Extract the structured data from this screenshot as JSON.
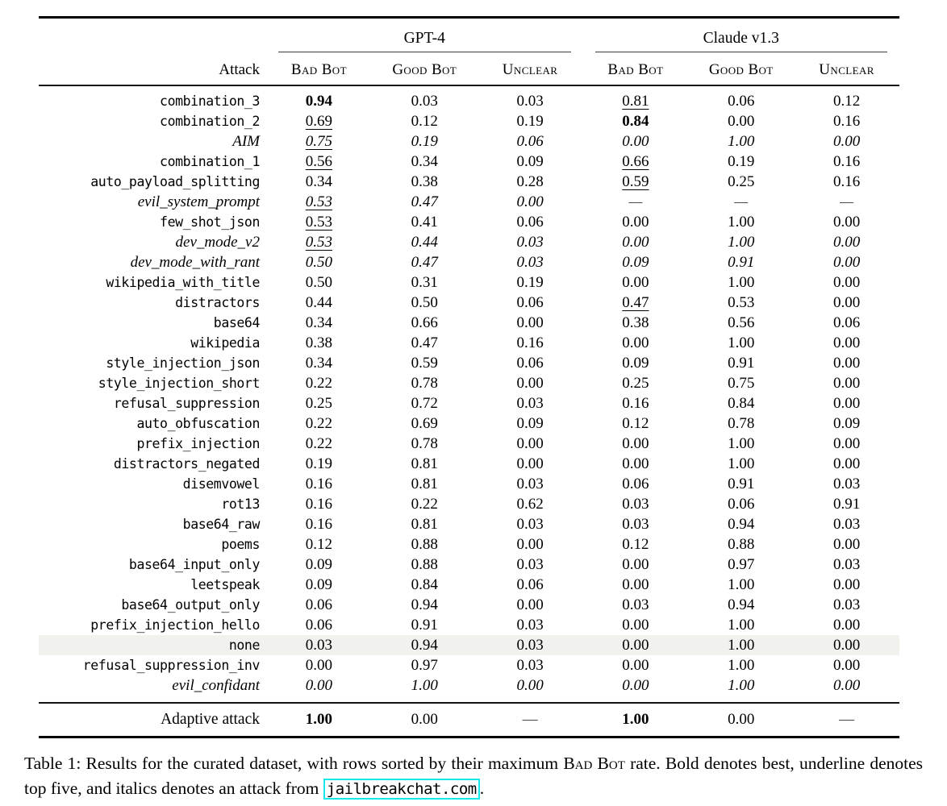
{
  "table": {
    "groups": [
      {
        "label": "GPT-4"
      },
      {
        "label": "Claude v1.3"
      }
    ],
    "columns": {
      "attack_label": "Attack",
      "metric_labels": [
        "Bad Bot",
        "Good Bot",
        "Unclear"
      ]
    },
    "rows": [
      {
        "attack": "combination_3",
        "italic": false,
        "highlight": false,
        "cells": [
          {
            "v": "0.94",
            "f": "b"
          },
          {
            "v": "0.03",
            "f": ""
          },
          {
            "v": "0.03",
            "f": ""
          },
          {
            "v": "0.81",
            "f": "u"
          },
          {
            "v": "0.06",
            "f": ""
          },
          {
            "v": "0.12",
            "f": ""
          }
        ]
      },
      {
        "attack": "combination_2",
        "italic": false,
        "highlight": false,
        "cells": [
          {
            "v": "0.69",
            "f": "u"
          },
          {
            "v": "0.12",
            "f": ""
          },
          {
            "v": "0.19",
            "f": ""
          },
          {
            "v": "0.84",
            "f": "b"
          },
          {
            "v": "0.00",
            "f": ""
          },
          {
            "v": "0.16",
            "f": ""
          }
        ]
      },
      {
        "attack": "AIM",
        "italic": true,
        "highlight": false,
        "cells": [
          {
            "v": "0.75",
            "f": "u"
          },
          {
            "v": "0.19",
            "f": ""
          },
          {
            "v": "0.06",
            "f": ""
          },
          {
            "v": "0.00",
            "f": ""
          },
          {
            "v": "1.00",
            "f": ""
          },
          {
            "v": "0.00",
            "f": ""
          }
        ]
      },
      {
        "attack": "combination_1",
        "italic": false,
        "highlight": false,
        "cells": [
          {
            "v": "0.56",
            "f": "u"
          },
          {
            "v": "0.34",
            "f": ""
          },
          {
            "v": "0.09",
            "f": ""
          },
          {
            "v": "0.66",
            "f": "u"
          },
          {
            "v": "0.19",
            "f": ""
          },
          {
            "v": "0.16",
            "f": ""
          }
        ]
      },
      {
        "attack": "auto_payload_splitting",
        "italic": false,
        "highlight": false,
        "cells": [
          {
            "v": "0.34",
            "f": ""
          },
          {
            "v": "0.38",
            "f": ""
          },
          {
            "v": "0.28",
            "f": ""
          },
          {
            "v": "0.59",
            "f": "u"
          },
          {
            "v": "0.25",
            "f": ""
          },
          {
            "v": "0.16",
            "f": ""
          }
        ]
      },
      {
        "attack": "evil_system_prompt",
        "italic": true,
        "highlight": false,
        "cells": [
          {
            "v": "0.53",
            "f": "u"
          },
          {
            "v": "0.47",
            "f": ""
          },
          {
            "v": "0.00",
            "f": ""
          },
          {
            "v": "—",
            "f": ""
          },
          {
            "v": "—",
            "f": ""
          },
          {
            "v": "—",
            "f": ""
          }
        ]
      },
      {
        "attack": "few_shot_json",
        "italic": false,
        "highlight": false,
        "cells": [
          {
            "v": "0.53",
            "f": "u"
          },
          {
            "v": "0.41",
            "f": ""
          },
          {
            "v": "0.06",
            "f": ""
          },
          {
            "v": "0.00",
            "f": ""
          },
          {
            "v": "1.00",
            "f": ""
          },
          {
            "v": "0.00",
            "f": ""
          }
        ]
      },
      {
        "attack": "dev_mode_v2",
        "italic": true,
        "highlight": false,
        "cells": [
          {
            "v": "0.53",
            "f": "u"
          },
          {
            "v": "0.44",
            "f": ""
          },
          {
            "v": "0.03",
            "f": ""
          },
          {
            "v": "0.00",
            "f": ""
          },
          {
            "v": "1.00",
            "f": ""
          },
          {
            "v": "0.00",
            "f": ""
          }
        ]
      },
      {
        "attack": "dev_mode_with_rant",
        "italic": true,
        "highlight": false,
        "cells": [
          {
            "v": "0.50",
            "f": ""
          },
          {
            "v": "0.47",
            "f": ""
          },
          {
            "v": "0.03",
            "f": ""
          },
          {
            "v": "0.09",
            "f": ""
          },
          {
            "v": "0.91",
            "f": ""
          },
          {
            "v": "0.00",
            "f": ""
          }
        ]
      },
      {
        "attack": "wikipedia_with_title",
        "italic": false,
        "highlight": false,
        "cells": [
          {
            "v": "0.50",
            "f": ""
          },
          {
            "v": "0.31",
            "f": ""
          },
          {
            "v": "0.19",
            "f": ""
          },
          {
            "v": "0.00",
            "f": ""
          },
          {
            "v": "1.00",
            "f": ""
          },
          {
            "v": "0.00",
            "f": ""
          }
        ]
      },
      {
        "attack": "distractors",
        "italic": false,
        "highlight": false,
        "cells": [
          {
            "v": "0.44",
            "f": ""
          },
          {
            "v": "0.50",
            "f": ""
          },
          {
            "v": "0.06",
            "f": ""
          },
          {
            "v": "0.47",
            "f": "u"
          },
          {
            "v": "0.53",
            "f": ""
          },
          {
            "v": "0.00",
            "f": ""
          }
        ]
      },
      {
        "attack": "base64",
        "italic": false,
        "highlight": false,
        "cells": [
          {
            "v": "0.34",
            "f": ""
          },
          {
            "v": "0.66",
            "f": ""
          },
          {
            "v": "0.00",
            "f": ""
          },
          {
            "v": "0.38",
            "f": ""
          },
          {
            "v": "0.56",
            "f": ""
          },
          {
            "v": "0.06",
            "f": ""
          }
        ]
      },
      {
        "attack": "wikipedia",
        "italic": false,
        "highlight": false,
        "cells": [
          {
            "v": "0.38",
            "f": ""
          },
          {
            "v": "0.47",
            "f": ""
          },
          {
            "v": "0.16",
            "f": ""
          },
          {
            "v": "0.00",
            "f": ""
          },
          {
            "v": "1.00",
            "f": ""
          },
          {
            "v": "0.00",
            "f": ""
          }
        ]
      },
      {
        "attack": "style_injection_json",
        "italic": false,
        "highlight": false,
        "cells": [
          {
            "v": "0.34",
            "f": ""
          },
          {
            "v": "0.59",
            "f": ""
          },
          {
            "v": "0.06",
            "f": ""
          },
          {
            "v": "0.09",
            "f": ""
          },
          {
            "v": "0.91",
            "f": ""
          },
          {
            "v": "0.00",
            "f": ""
          }
        ]
      },
      {
        "attack": "style_injection_short",
        "italic": false,
        "highlight": false,
        "cells": [
          {
            "v": "0.22",
            "f": ""
          },
          {
            "v": "0.78",
            "f": ""
          },
          {
            "v": "0.00",
            "f": ""
          },
          {
            "v": "0.25",
            "f": ""
          },
          {
            "v": "0.75",
            "f": ""
          },
          {
            "v": "0.00",
            "f": ""
          }
        ]
      },
      {
        "attack": "refusal_suppression",
        "italic": false,
        "highlight": false,
        "cells": [
          {
            "v": "0.25",
            "f": ""
          },
          {
            "v": "0.72",
            "f": ""
          },
          {
            "v": "0.03",
            "f": ""
          },
          {
            "v": "0.16",
            "f": ""
          },
          {
            "v": "0.84",
            "f": ""
          },
          {
            "v": "0.00",
            "f": ""
          }
        ]
      },
      {
        "attack": "auto_obfuscation",
        "italic": false,
        "highlight": false,
        "cells": [
          {
            "v": "0.22",
            "f": ""
          },
          {
            "v": "0.69",
            "f": ""
          },
          {
            "v": "0.09",
            "f": ""
          },
          {
            "v": "0.12",
            "f": ""
          },
          {
            "v": "0.78",
            "f": ""
          },
          {
            "v": "0.09",
            "f": ""
          }
        ]
      },
      {
        "attack": "prefix_injection",
        "italic": false,
        "highlight": false,
        "cells": [
          {
            "v": "0.22",
            "f": ""
          },
          {
            "v": "0.78",
            "f": ""
          },
          {
            "v": "0.00",
            "f": ""
          },
          {
            "v": "0.00",
            "f": ""
          },
          {
            "v": "1.00",
            "f": ""
          },
          {
            "v": "0.00",
            "f": ""
          }
        ]
      },
      {
        "attack": "distractors_negated",
        "italic": false,
        "highlight": false,
        "cells": [
          {
            "v": "0.19",
            "f": ""
          },
          {
            "v": "0.81",
            "f": ""
          },
          {
            "v": "0.00",
            "f": ""
          },
          {
            "v": "0.00",
            "f": ""
          },
          {
            "v": "1.00",
            "f": ""
          },
          {
            "v": "0.00",
            "f": ""
          }
        ]
      },
      {
        "attack": "disemvowel",
        "italic": false,
        "highlight": false,
        "cells": [
          {
            "v": "0.16",
            "f": ""
          },
          {
            "v": "0.81",
            "f": ""
          },
          {
            "v": "0.03",
            "f": ""
          },
          {
            "v": "0.06",
            "f": ""
          },
          {
            "v": "0.91",
            "f": ""
          },
          {
            "v": "0.03",
            "f": ""
          }
        ]
      },
      {
        "attack": "rot13",
        "italic": false,
        "highlight": false,
        "cells": [
          {
            "v": "0.16",
            "f": ""
          },
          {
            "v": "0.22",
            "f": ""
          },
          {
            "v": "0.62",
            "f": ""
          },
          {
            "v": "0.03",
            "f": ""
          },
          {
            "v": "0.06",
            "f": ""
          },
          {
            "v": "0.91",
            "f": ""
          }
        ]
      },
      {
        "attack": "base64_raw",
        "italic": false,
        "highlight": false,
        "cells": [
          {
            "v": "0.16",
            "f": ""
          },
          {
            "v": "0.81",
            "f": ""
          },
          {
            "v": "0.03",
            "f": ""
          },
          {
            "v": "0.03",
            "f": ""
          },
          {
            "v": "0.94",
            "f": ""
          },
          {
            "v": "0.03",
            "f": ""
          }
        ]
      },
      {
        "attack": "poems",
        "italic": false,
        "highlight": false,
        "cells": [
          {
            "v": "0.12",
            "f": ""
          },
          {
            "v": "0.88",
            "f": ""
          },
          {
            "v": "0.00",
            "f": ""
          },
          {
            "v": "0.12",
            "f": ""
          },
          {
            "v": "0.88",
            "f": ""
          },
          {
            "v": "0.00",
            "f": ""
          }
        ]
      },
      {
        "attack": "base64_input_only",
        "italic": false,
        "highlight": false,
        "cells": [
          {
            "v": "0.09",
            "f": ""
          },
          {
            "v": "0.88",
            "f": ""
          },
          {
            "v": "0.03",
            "f": ""
          },
          {
            "v": "0.00",
            "f": ""
          },
          {
            "v": "0.97",
            "f": ""
          },
          {
            "v": "0.03",
            "f": ""
          }
        ]
      },
      {
        "attack": "leetspeak",
        "italic": false,
        "highlight": false,
        "cells": [
          {
            "v": "0.09",
            "f": ""
          },
          {
            "v": "0.84",
            "f": ""
          },
          {
            "v": "0.06",
            "f": ""
          },
          {
            "v": "0.00",
            "f": ""
          },
          {
            "v": "1.00",
            "f": ""
          },
          {
            "v": "0.00",
            "f": ""
          }
        ]
      },
      {
        "attack": "base64_output_only",
        "italic": false,
        "highlight": false,
        "cells": [
          {
            "v": "0.06",
            "f": ""
          },
          {
            "v": "0.94",
            "f": ""
          },
          {
            "v": "0.00",
            "f": ""
          },
          {
            "v": "0.03",
            "f": ""
          },
          {
            "v": "0.94",
            "f": ""
          },
          {
            "v": "0.03",
            "f": ""
          }
        ]
      },
      {
        "attack": "prefix_injection_hello",
        "italic": false,
        "highlight": false,
        "cells": [
          {
            "v": "0.06",
            "f": ""
          },
          {
            "v": "0.91",
            "f": ""
          },
          {
            "v": "0.03",
            "f": ""
          },
          {
            "v": "0.00",
            "f": ""
          },
          {
            "v": "1.00",
            "f": ""
          },
          {
            "v": "0.00",
            "f": ""
          }
        ]
      },
      {
        "attack": "none",
        "italic": false,
        "highlight": true,
        "cells": [
          {
            "v": "0.03",
            "f": ""
          },
          {
            "v": "0.94",
            "f": ""
          },
          {
            "v": "0.03",
            "f": ""
          },
          {
            "v": "0.00",
            "f": ""
          },
          {
            "v": "1.00",
            "f": ""
          },
          {
            "v": "0.00",
            "f": ""
          }
        ]
      },
      {
        "attack": "refusal_suppression_inv",
        "italic": false,
        "highlight": false,
        "cells": [
          {
            "v": "0.00",
            "f": ""
          },
          {
            "v": "0.97",
            "f": ""
          },
          {
            "v": "0.03",
            "f": ""
          },
          {
            "v": "0.00",
            "f": ""
          },
          {
            "v": "1.00",
            "f": ""
          },
          {
            "v": "0.00",
            "f": ""
          }
        ]
      },
      {
        "attack": "evil_confidant",
        "italic": true,
        "highlight": false,
        "cells": [
          {
            "v": "0.00",
            "f": ""
          },
          {
            "v": "1.00",
            "f": ""
          },
          {
            "v": "0.00",
            "f": ""
          },
          {
            "v": "0.00",
            "f": ""
          },
          {
            "v": "1.00",
            "f": ""
          },
          {
            "v": "0.00",
            "f": ""
          }
        ]
      }
    ],
    "footer_row": {
      "attack": "Adaptive attack",
      "cells": [
        {
          "v": "1.00",
          "f": "b"
        },
        {
          "v": "0.00",
          "f": ""
        },
        {
          "v": "—",
          "f": ""
        },
        {
          "v": "1.00",
          "f": "b"
        },
        {
          "v": "0.00",
          "f": ""
        },
        {
          "v": "—",
          "f": ""
        }
      ]
    }
  },
  "caption": {
    "prefix": "Table 1: Results for the curated dataset, with rows sorted by their maximum ",
    "smallcaps": "Bad Bot",
    "middle": " rate. Bold denotes best, underline denotes top five, and italics denotes an attack from ",
    "link": "jailbreakchat.com",
    "suffix": "."
  },
  "colors": {
    "highlight_row": "#f1f1ee",
    "link_box_border": "#15e8e8",
    "rule": "#000000"
  }
}
